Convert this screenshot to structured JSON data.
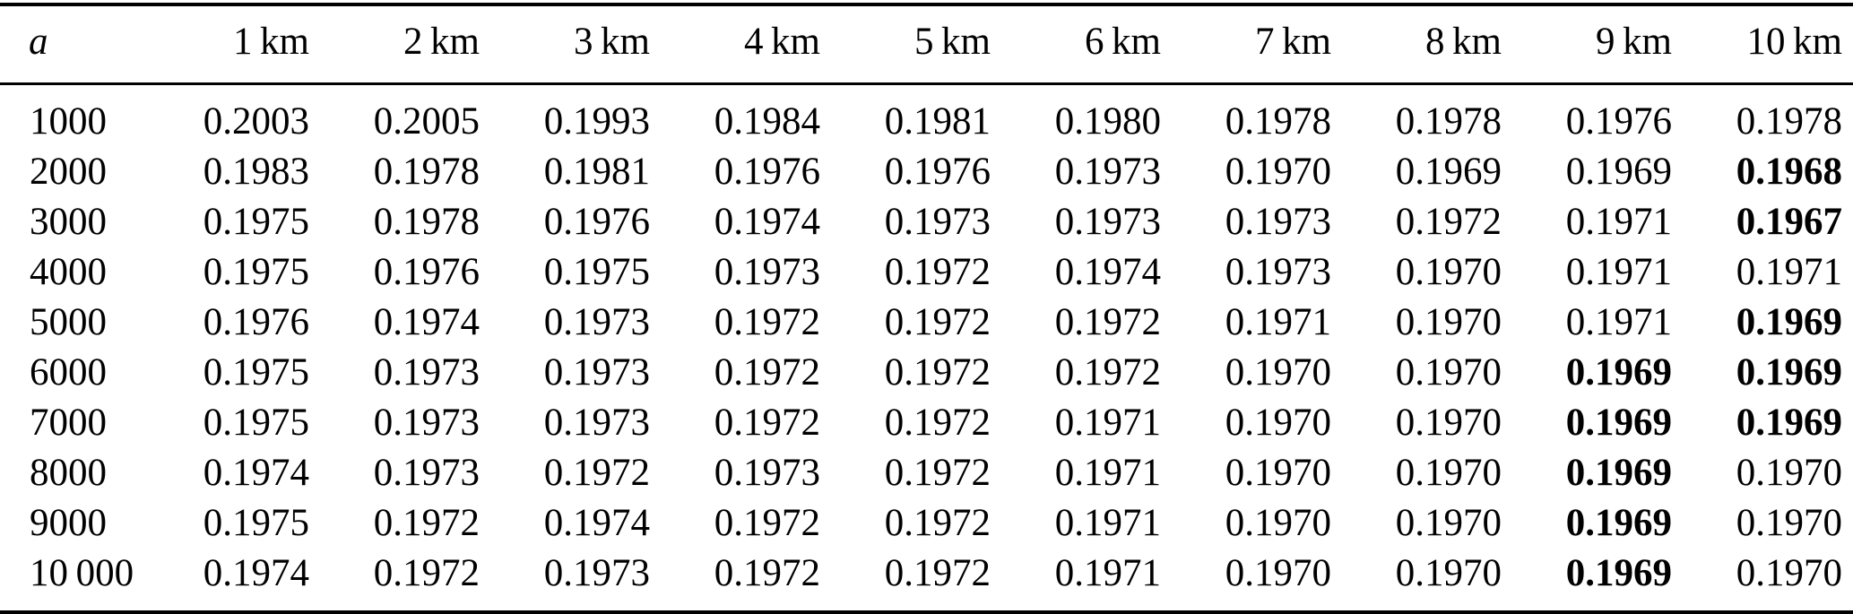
{
  "colors": {
    "background": "#ffffff",
    "text": "#000000",
    "rule": "#000000"
  },
  "table": {
    "corner_header": "a",
    "column_headers": [
      "1 km",
      "2 km",
      "3 km",
      "4 km",
      "5 km",
      "6 km",
      "7 km",
      "8 km",
      "9 km",
      "10 km"
    ],
    "rows": [
      {
        "label": "1000",
        "values": [
          "0.2003",
          "0.2005",
          "0.1993",
          "0.1984",
          "0.1981",
          "0.1980",
          "0.1978",
          "0.1978",
          "0.1976",
          "0.1978"
        ],
        "bold_cols": []
      },
      {
        "label": "2000",
        "values": [
          "0.1983",
          "0.1978",
          "0.1981",
          "0.1976",
          "0.1976",
          "0.1973",
          "0.1970",
          "0.1969",
          "0.1969",
          "0.1968"
        ],
        "bold_cols": [
          9
        ]
      },
      {
        "label": "3000",
        "values": [
          "0.1975",
          "0.1978",
          "0.1976",
          "0.1974",
          "0.1973",
          "0.1973",
          "0.1973",
          "0.1972",
          "0.1971",
          "0.1967"
        ],
        "bold_cols": [
          9
        ]
      },
      {
        "label": "4000",
        "values": [
          "0.1975",
          "0.1976",
          "0.1975",
          "0.1973",
          "0.1972",
          "0.1974",
          "0.1973",
          "0.1970",
          "0.1971",
          "0.1971"
        ],
        "bold_cols": []
      },
      {
        "label": "5000",
        "values": [
          "0.1976",
          "0.1974",
          "0.1973",
          "0.1972",
          "0.1972",
          "0.1972",
          "0.1971",
          "0.1970",
          "0.1971",
          "0.1969"
        ],
        "bold_cols": [
          9
        ]
      },
      {
        "label": "6000",
        "values": [
          "0.1975",
          "0.1973",
          "0.1973",
          "0.1972",
          "0.1972",
          "0.1972",
          "0.1970",
          "0.1970",
          "0.1969",
          "0.1969"
        ],
        "bold_cols": [
          8,
          9
        ]
      },
      {
        "label": "7000",
        "values": [
          "0.1975",
          "0.1973",
          "0.1973",
          "0.1972",
          "0.1972",
          "0.1971",
          "0.1970",
          "0.1970",
          "0.1969",
          "0.1969"
        ],
        "bold_cols": [
          8,
          9
        ]
      },
      {
        "label": "8000",
        "values": [
          "0.1974",
          "0.1973",
          "0.1972",
          "0.1973",
          "0.1972",
          "0.1971",
          "0.1970",
          "0.1970",
          "0.1969",
          "0.1970"
        ],
        "bold_cols": [
          8
        ]
      },
      {
        "label": "9000",
        "values": [
          "0.1975",
          "0.1972",
          "0.1974",
          "0.1972",
          "0.1972",
          "0.1971",
          "0.1970",
          "0.1970",
          "0.1969",
          "0.1970"
        ],
        "bold_cols": [
          8
        ]
      },
      {
        "label": "10 000",
        "values": [
          "0.1974",
          "0.1972",
          "0.1973",
          "0.1972",
          "0.1972",
          "0.1971",
          "0.1970",
          "0.1970",
          "0.1969",
          "0.1970"
        ],
        "bold_cols": [
          8
        ]
      }
    ]
  }
}
